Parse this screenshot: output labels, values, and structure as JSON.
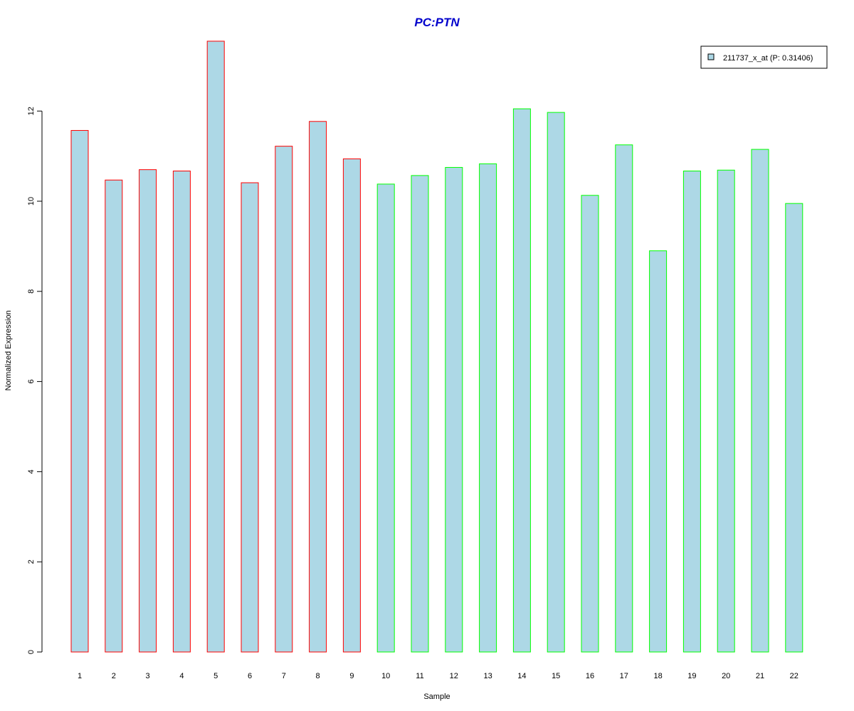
{
  "chart_data": {
    "type": "bar",
    "title": "PC:PTN",
    "title_color": "#0000CC",
    "xlabel": "Sample",
    "ylabel": "Normalized Expression",
    "categories": [
      "1",
      "2",
      "3",
      "4",
      "5",
      "6",
      "7",
      "8",
      "9",
      "10",
      "11",
      "12",
      "13",
      "14",
      "15",
      "16",
      "17",
      "18",
      "19",
      "20",
      "21",
      "22"
    ],
    "series": [
      {
        "name": "211737_x_at (P: 0.31406)",
        "values": [
          11.57,
          10.47,
          10.7,
          10.67,
          13.55,
          10.41,
          11.22,
          11.77,
          10.94,
          10.38,
          10.57,
          10.75,
          10.83,
          12.05,
          11.97,
          10.13,
          11.25,
          8.9,
          10.67,
          10.69,
          11.15,
          9.95
        ],
        "fill": "#ADD8E6"
      }
    ],
    "group_border_colors": [
      "#FF0000",
      "#FF0000",
      "#FF0000",
      "#FF0000",
      "#FF0000",
      "#FF0000",
      "#FF0000",
      "#FF0000",
      "#FF0000",
      "#00FF00",
      "#00FF00",
      "#00FF00",
      "#00FF00",
      "#00FF00",
      "#00FF00",
      "#00FF00",
      "#00FF00",
      "#00FF00",
      "#00FF00",
      "#00FF00",
      "#00FF00",
      "#00FF00"
    ],
    "yticks": [
      "0",
      "2",
      "4",
      "6",
      "8",
      "10",
      "12"
    ],
    "ylim": [
      0,
      13.55
    ],
    "grid": false,
    "legend_position": "top-right"
  }
}
